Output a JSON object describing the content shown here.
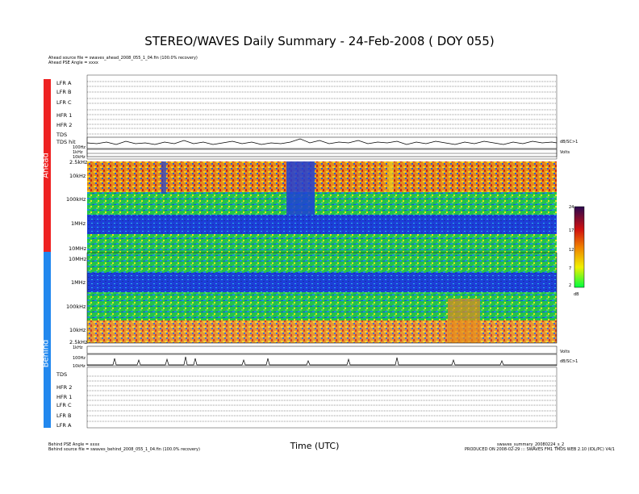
{
  "title": "STEREO/WAVES Daily Summary - 24-Feb-2008 ( DOY 055)",
  "header": {
    "ahead_source": "Ahead source file = swaves_ahead_2008_055_1_04.fin (100.0% recovery)",
    "ahead_pse": "Ahead PSE Angle = xxxx"
  },
  "footer": {
    "behind_pse": "Behind PSE Angle = xxxx",
    "behind_source": "Behind source file = swaves_behind_2008_055_1_04.fin (100.0% recovery)",
    "xlabel": "Time (UTC)",
    "file_id": "swaves_summary_20080224_s_2",
    "produced": "PRODUCED ON 2008-02-29 ::: SWAVES FM1 TMDS WEB 2.10 (IDL/PC) V4/1"
  },
  "side_labels": {
    "ahead": "Ahead",
    "behind": "Behind"
  },
  "colors": {
    "ahead_bar": "#ee2222",
    "behind_bar": "#2288ee"
  },
  "ahead_panels": [
    "LFR A",
    "LFR B",
    "LFR C",
    "HFR 1",
    "HFR 2",
    "TDS",
    "TDS hit"
  ],
  "behind_panels": [
    "TDS",
    "HFR 2",
    "HFR 1",
    "LFR C",
    "LFR B",
    "LFR A"
  ],
  "colorbar": {
    "ticks": [
      "24",
      "17",
      "12",
      "7",
      "2"
    ],
    "unit": "dB"
  },
  "chart_data": {
    "type": "heatmap",
    "title": "STEREO/WAVES Daily Summary - 24-Feb-2008 ( DOY 055)",
    "xlabel": "Time (UTC)",
    "colorbar_range": [
      2,
      24
    ],
    "colorbar_unit": "dB",
    "ahead_freq_ticks": [
      "2.5kHz",
      "10kHz",
      "100kHz",
      "1MHz",
      "10MHz"
    ],
    "behind_freq_ticks": [
      "10MHz",
      "1MHz",
      "100kHz",
      "10kHz",
      "2.5kHz"
    ],
    "ahead_small_ticks": [
      "100Hz",
      "1kHz",
      "10kHz"
    ],
    "behind_small_ticks": [
      "1kHz",
      "100Hz",
      "10kHz"
    ],
    "right_labels": {
      "ahead_power": "dB/SC>1",
      "ahead_xfr": "Volts",
      "behind_xfr": "Volts",
      "behind_power": "dB/SC>1"
    }
  }
}
